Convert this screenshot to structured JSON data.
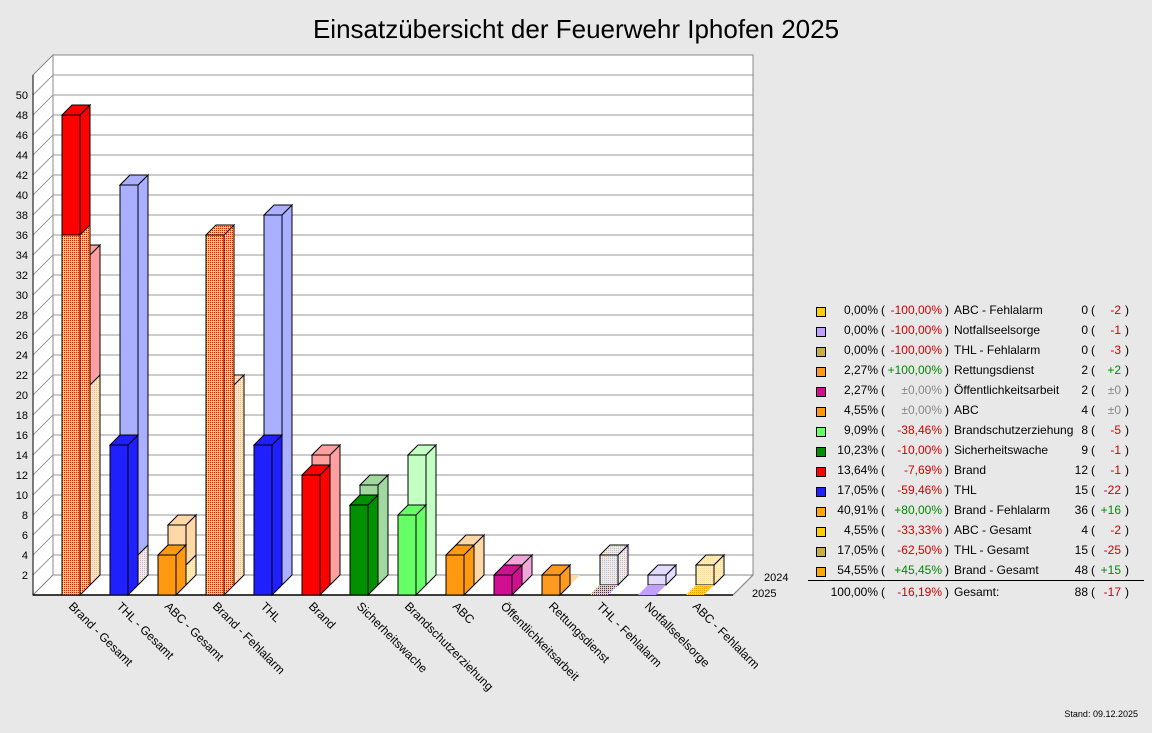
{
  "title": "Einsatzübersicht der Feuerwehr Iphofen 2025",
  "stand": "Stand: 09.12.2025",
  "chart_data": {
    "type": "bar",
    "title": "Einsatzübersicht der Feuerwehr Iphofen 2025",
    "ylim": [
      0,
      52
    ],
    "yticks": [
      "2",
      "4",
      "6",
      "8",
      "10",
      "12",
      "14",
      "16",
      "18",
      "20",
      "22",
      "24",
      "26",
      "28",
      "30",
      "32",
      "34",
      "36",
      "38",
      "40",
      "42",
      "44",
      "46",
      "48",
      "50"
    ],
    "series_labels": [
      "2024",
      "2025"
    ],
    "categories": [
      "Brand - Gesamt",
      "THL - Gesamt",
      "ABC - Gesamt",
      "Brand - Fehlalarm",
      "THL",
      "Brand",
      "Sicherheitswache",
      "Brandschutzerziehung",
      "ABC",
      "Öffentlichkeitsarbeit",
      "Rettungsdienst",
      "THL - Fehlalarm",
      "Notfallseelsorge",
      "ABC - Fehlalarm"
    ],
    "stacks_2025": [
      [
        {
          "v": 36,
          "c": "brandfa"
        },
        {
          "v": 12,
          "c": "brand"
        }
      ],
      [
        {
          "v": 0,
          "c": "thlfa"
        },
        {
          "v": 15,
          "c": "thl"
        }
      ],
      [
        {
          "v": 0,
          "c": "abcfa"
        },
        {
          "v": 4,
          "c": "abc"
        }
      ],
      [
        {
          "v": 36,
          "c": "brandfa"
        }
      ],
      [
        {
          "v": 15,
          "c": "thl"
        }
      ],
      [
        {
          "v": 12,
          "c": "brand"
        }
      ],
      [
        {
          "v": 9,
          "c": "sw"
        }
      ],
      [
        {
          "v": 8,
          "c": "bse"
        }
      ],
      [
        {
          "v": 4,
          "c": "abc"
        }
      ],
      [
        {
          "v": 2,
          "c": "oea"
        }
      ],
      [
        {
          "v": 2,
          "c": "rd"
        }
      ],
      [
        {
          "v": 0,
          "c": "thlfa"
        }
      ],
      [
        {
          "v": 0,
          "c": "nfs"
        }
      ],
      [
        {
          "v": 0,
          "c": "abcfa"
        }
      ]
    ],
    "stacks_2024": [
      [
        {
          "v": 20,
          "c": "brandfa"
        },
        {
          "v": 13,
          "c": "brand"
        }
      ],
      [
        {
          "v": 3,
          "c": "thlfa"
        },
        {
          "v": 37,
          "c": "thl"
        }
      ],
      [
        {
          "v": 2,
          "c": "abcfa"
        },
        {
          "v": 4,
          "c": "abc"
        }
      ],
      [
        {
          "v": 20,
          "c": "brandfa"
        }
      ],
      [
        {
          "v": 37,
          "c": "thl"
        }
      ],
      [
        {
          "v": 13,
          "c": "brand"
        }
      ],
      [
        {
          "v": 10,
          "c": "sw"
        }
      ],
      [
        {
          "v": 13,
          "c": "bse"
        }
      ],
      [
        {
          "v": 4,
          "c": "abc"
        }
      ],
      [
        {
          "v": 2,
          "c": "oea"
        }
      ],
      [
        {
          "v": 0,
          "c": "rd"
        }
      ],
      [
        {
          "v": 3,
          "c": "thlfa"
        }
      ],
      [
        {
          "v": 1,
          "c": "nfs"
        }
      ],
      [
        {
          "v": 2,
          "c": "abcfa"
        }
      ]
    ],
    "colors": {
      "brand": {
        "base": "#ff0000",
        "light": "#ffa0a0"
      },
      "thl": {
        "base": "#2020ff",
        "light": "#aab0ff"
      },
      "abc": {
        "base": "#ff9a10",
        "light": "#ffd8a8"
      },
      "sw": {
        "base": "#009000",
        "light": "#a0d8a0"
      },
      "bse": {
        "base": "#66ff66",
        "light": "#c4ffc4"
      },
      "oea": {
        "base": "#d01090",
        "light": "#f0a8d8"
      },
      "rd": {
        "base": "#ff9a20",
        "light": "#ffd8a8"
      },
      "nfs": {
        "base": "#c0a0ff",
        "light": "#e4dcff"
      },
      "brandfa": {
        "base": "#ffe000",
        "dot": "#ff0000",
        "light": "#fff0b0",
        "ldot": "#ffb0b0"
      },
      "thlfa": {
        "base": "#ffe000",
        "dot": "#2020ff",
        "light": "#fff0b0",
        "ldot": "#b0b8ff"
      },
      "abcfa": {
        "base": "#ffe000",
        "dot": "#ff9a10",
        "light": "#fff0b0",
        "ldot": "#ffd8a8"
      }
    }
  },
  "legend": [
    {
      "color": "abcfa",
      "pct": "0,00%",
      "chg": "-100,00%",
      "chg_t": "neg",
      "name": "ABC - Fehlalarm",
      "count": "0",
      "delta": "-2",
      "delta_t": "neg"
    },
    {
      "color": "nfs",
      "pct": "0,00%",
      "chg": "-100,00%",
      "chg_t": "neg",
      "name": "Notfallseelsorge",
      "count": "0",
      "delta": "-1",
      "delta_t": "neg"
    },
    {
      "color": "thlfa",
      "pct": "0,00%",
      "chg": "-100,00%",
      "chg_t": "neg",
      "name": "THL - Fehlalarm",
      "count": "0",
      "delta": "-3",
      "delta_t": "neg"
    },
    {
      "color": "rd",
      "pct": "2,27%",
      "chg": "+100,00%",
      "chg_t": "pos",
      "name": "Rettungsdienst",
      "count": "2",
      "delta": "+2",
      "delta_t": "pos"
    },
    {
      "color": "oea",
      "pct": "2,27%",
      "chg": "±0,00%",
      "chg_t": "zer",
      "name": "Öffentlichkeitsarbeit",
      "count": "2",
      "delta": "±0",
      "delta_t": "zer"
    },
    {
      "color": "abc",
      "pct": "4,55%",
      "chg": "±0,00%",
      "chg_t": "zer",
      "name": "ABC",
      "count": "4",
      "delta": "±0",
      "delta_t": "zer"
    },
    {
      "color": "bse",
      "pct": "9,09%",
      "chg": "-38,46%",
      "chg_t": "neg",
      "name": "Brandschutzerziehung",
      "count": "8",
      "delta": "-5",
      "delta_t": "neg"
    },
    {
      "color": "sw",
      "pct": "10,23%",
      "chg": "-10,00%",
      "chg_t": "neg",
      "name": "Sicherheitswache",
      "count": "9",
      "delta": "-1",
      "delta_t": "neg"
    },
    {
      "color": "brand",
      "pct": "13,64%",
      "chg": "-7,69%",
      "chg_t": "neg",
      "name": "Brand",
      "count": "12",
      "delta": "-1",
      "delta_t": "neg"
    },
    {
      "color": "thl",
      "pct": "17,05%",
      "chg": "-59,46%",
      "chg_t": "neg",
      "name": "THL",
      "count": "15",
      "delta": "-22",
      "delta_t": "neg"
    },
    {
      "color": "brandfa",
      "pct": "40,91%",
      "chg": "+80,00%",
      "chg_t": "pos",
      "name": "Brand - Fehlalarm",
      "count": "36",
      "delta": "+16",
      "delta_t": "pos"
    },
    {
      "color": "abcfa",
      "pct": "4,55%",
      "chg": "-33,33%",
      "chg_t": "neg",
      "name": "ABC - Gesamt",
      "count": "4",
      "delta": "-2",
      "delta_t": "neg"
    },
    {
      "color": "thlfa",
      "pct": "17,05%",
      "chg": "-62,50%",
      "chg_t": "neg",
      "name": "THL - Gesamt",
      "count": "15",
      "delta": "-25",
      "delta_t": "neg"
    },
    {
      "color": "brandfa",
      "pct": "54,55%",
      "chg": "+45,45%",
      "chg_t": "pos",
      "name": "Brand - Gesamt",
      "count": "48",
      "delta": "+15",
      "delta_t": "pos"
    }
  ],
  "total": {
    "pct": "100,00%",
    "chg": "-16,19%",
    "chg_t": "neg",
    "name": "Gesamt:",
    "count": "88",
    "delta": "-17",
    "delta_t": "neg"
  }
}
